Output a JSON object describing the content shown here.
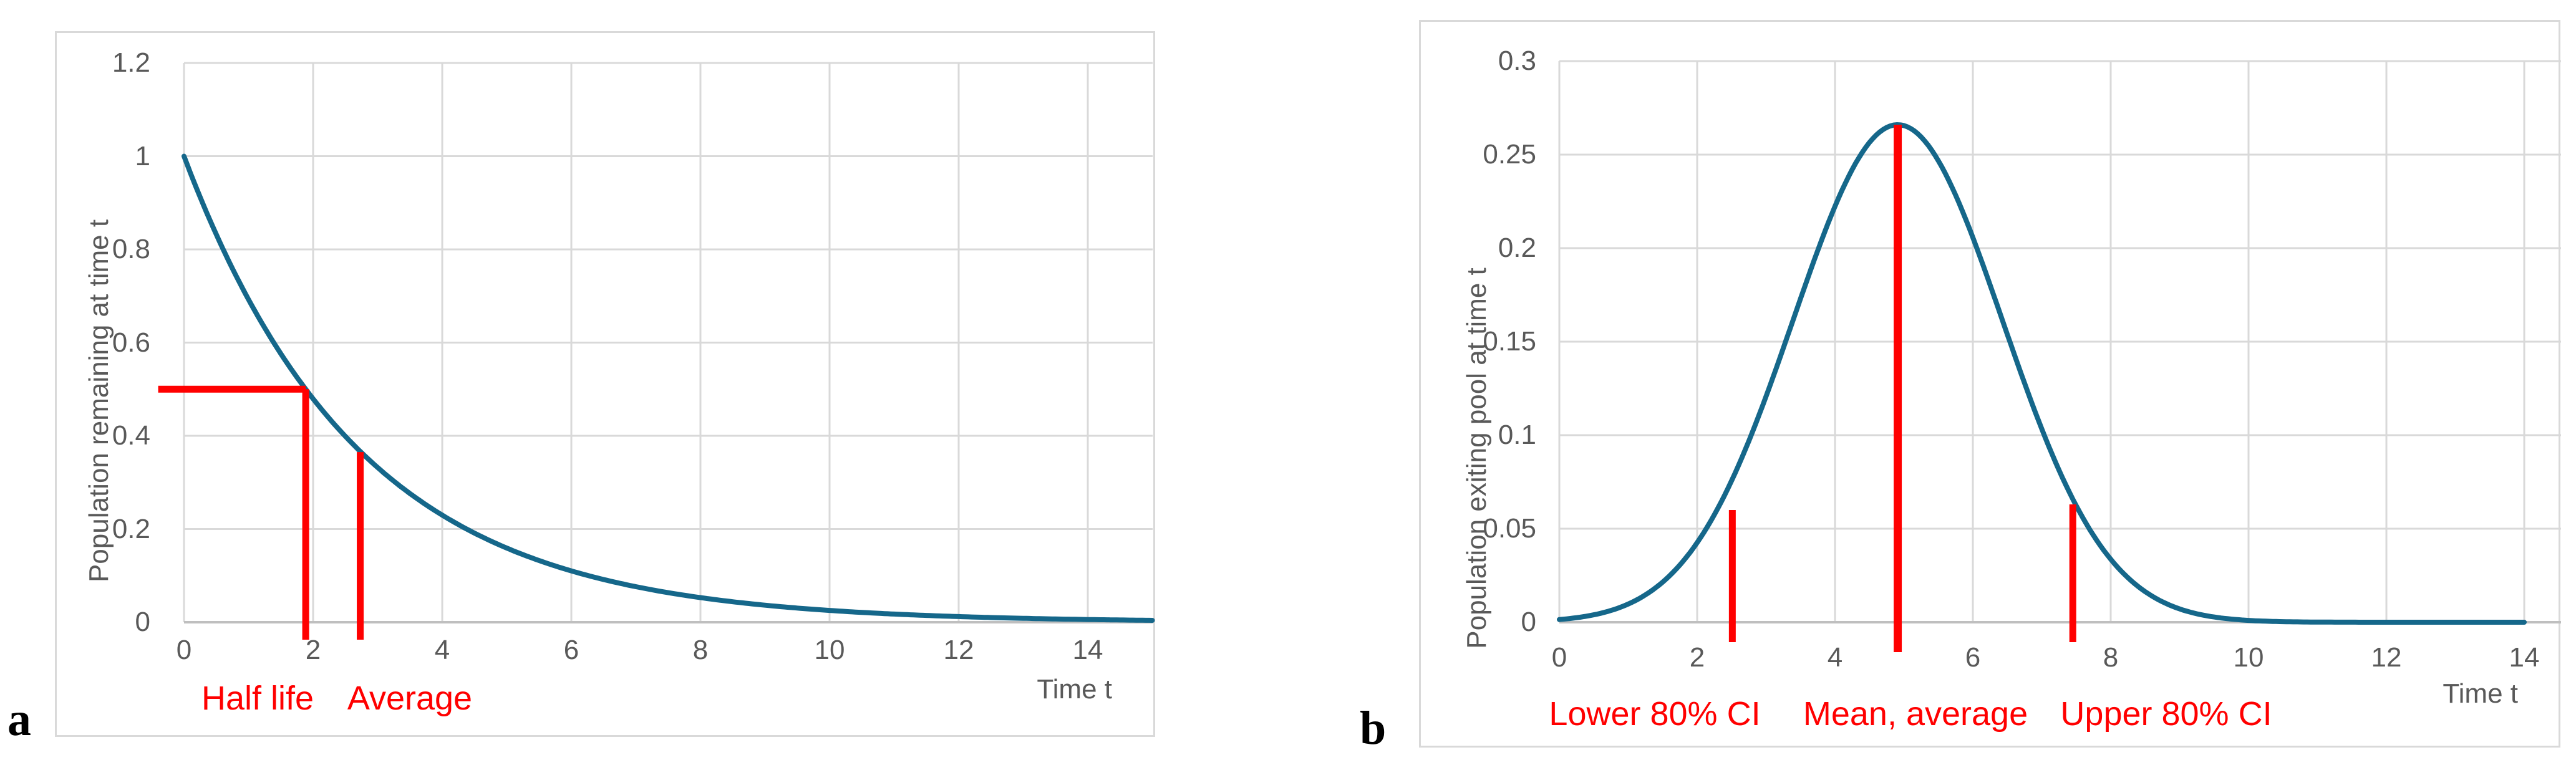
{
  "panels": [
    {
      "letter": "a"
    },
    {
      "letter": "b"
    }
  ],
  "colors": {
    "curve": "#15678a",
    "annotation_red": "#ff0000",
    "gridline": "#d9d9d9",
    "axis_line": "#bfbfbf",
    "label_gray": "#595959"
  },
  "chart_data": [
    {
      "id": "a",
      "type": "line",
      "title": "",
      "xlabel": "Time t",
      "ylabel": "Population remaining at time t",
      "xlim": [
        0,
        15
      ],
      "ylim": [
        0,
        1.2
      ],
      "grid": true,
      "legend": "none",
      "x_ticks": [
        "0",
        "2",
        "4",
        "6",
        "8",
        "10",
        "12",
        "14"
      ],
      "y_ticks": [
        "0",
        "0.2",
        "0.4",
        "0.6",
        "0.8",
        "1",
        "1.2"
      ],
      "series": [
        {
          "name": "population-remaining-curve",
          "model": "exponential_decay",
          "formula": "y = exp(-t / 2.72)",
          "tau": 2.72,
          "x_range": [
            0,
            15
          ],
          "sampled_points_t": [
            0,
            1,
            2,
            3,
            4,
            5,
            6,
            7,
            8,
            9,
            10,
            11,
            12,
            13,
            14,
            15
          ],
          "sampled_points_y": [
            1.0,
            0.692,
            0.479,
            0.332,
            0.23,
            0.159,
            0.11,
            0.076,
            0.053,
            0.037,
            0.025,
            0.018,
            0.012,
            0.0084,
            0.0058,
            0.004
          ]
        }
      ],
      "annotations": [
        {
          "kind": "hline",
          "y": 0.5,
          "x_from": -0.4,
          "x_to": 1.885,
          "label": ""
        },
        {
          "kind": "vline",
          "x": 1.885,
          "y_top": 0.5,
          "label": "Half life"
        },
        {
          "kind": "vline",
          "x": 2.73,
          "y_top": 0.365,
          "label": "Average"
        }
      ]
    },
    {
      "id": "b",
      "type": "line",
      "title": "",
      "xlabel": "Time t",
      "ylabel": "Population exiting pool at time t",
      "xlim": [
        0,
        14.5
      ],
      "ylim": [
        0,
        0.3
      ],
      "grid": true,
      "legend": "none",
      "x_ticks": [
        "0",
        "2",
        "4",
        "6",
        "8",
        "10",
        "12",
        "14"
      ],
      "y_ticks": [
        "0",
        "0.05",
        "0.1",
        "0.15",
        "0.2",
        "0.25",
        "0.3"
      ],
      "series": [
        {
          "name": "population-exiting-curve",
          "model": "gaussian",
          "formula": "y = 0.266 * exp(-(t-4.91)^2 / (2*1.52^2))",
          "peak": 0.266,
          "mean": 4.91,
          "sigma": 1.52,
          "x_range": [
            0,
            14
          ],
          "sampled_points_t": [
            0,
            1,
            2,
            3,
            4,
            4.91,
            6,
            7,
            8,
            9,
            10,
            11,
            12,
            13,
            14
          ],
          "sampled_points_y": [
            0.0015,
            0.0086,
            0.0355,
            0.1035,
            0.2213,
            0.266,
            0.2066,
            0.1095,
            0.0392,
            0.0095,
            0.0016,
            0.0002,
            0.0,
            0.0,
            0.0
          ]
        }
      ],
      "annotations": [
        {
          "kind": "vline",
          "x": 2.51,
          "y_top": 0.06,
          "label": "Lower 80% CI"
        },
        {
          "kind": "vline",
          "x": 4.91,
          "y_top": 0.266,
          "label": "Mean, average"
        },
        {
          "kind": "vline",
          "x": 7.45,
          "y_top": 0.063,
          "label": "Upper 80% CI"
        }
      ]
    }
  ]
}
